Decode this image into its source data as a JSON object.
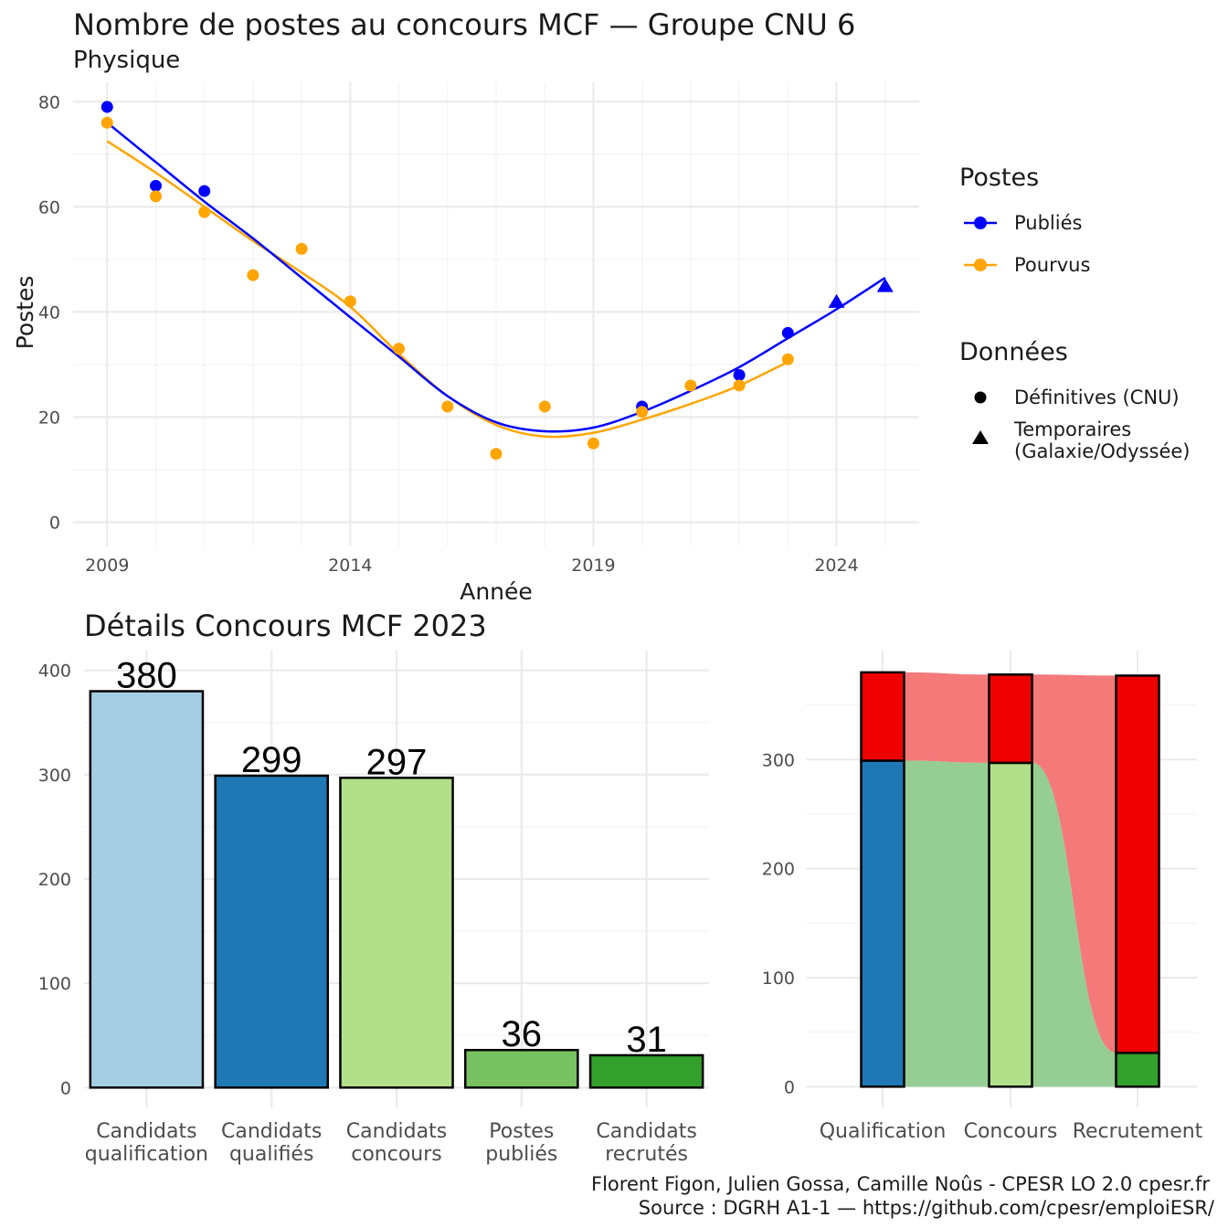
{
  "colors": {
    "publies": "#0000ff",
    "pourvus": "#ffa500",
    "qualification": "#a6cee3",
    "qualifies": "#1f78b4",
    "concours": "#b2df8a",
    "postes_publies": "#77c160",
    "recrutes": "#33a02c",
    "flow_red": "#f47a7a",
    "flow_green": "#96cd92",
    "stack_red": "#ee0000"
  },
  "legend": {
    "postes_title": "Postes",
    "publies": "Publiés",
    "pourvus": "Pourvus",
    "donnees_title": "Données",
    "definitives": "Définitives (CNU)",
    "temporaires_line1": "Temporaires",
    "temporaires_line2": "(Galaxie/Odyssée)"
  },
  "caption": {
    "line1": "Florent Figon, Julien Gossa, Camille Noûs - CPESR LO 2.0 cpesr.fr",
    "line2": "Source : DGRH A1-1 — https://github.com/cpesr/emploiESR/"
  },
  "chart_data": [
    {
      "type": "line",
      "title": "Nombre de postes au concours MCF —  Groupe CNU 6",
      "subtitle": "Physique",
      "xlabel": "Année",
      "ylabel": "Postes",
      "xlim": [
        2008.3,
        2025.7
      ],
      "ylim": [
        -4.6,
        83.7
      ],
      "xticks": [
        2009,
        2014,
        2019,
        2024
      ],
      "yticks": [
        0,
        20,
        40,
        60,
        80
      ],
      "series": [
        {
          "name": "Publiés",
          "points": [
            {
              "x": 2009,
              "y": 79,
              "shape": "Définitives (CNU)"
            },
            {
              "x": 2010,
              "y": 64,
              "shape": "Définitives (CNU)"
            },
            {
              "x": 2011,
              "y": 63,
              "shape": "Définitives (CNU)"
            },
            {
              "x": 2020,
              "y": 22,
              "shape": "Définitives (CNU)"
            },
            {
              "x": 2022,
              "y": 28,
              "shape": "Définitives (CNU)"
            },
            {
              "x": 2023,
              "y": 36,
              "shape": "Définitives (CNU)"
            },
            {
              "x": 2024,
              "y": 42,
              "shape": "Temporaires (Galaxie/Odyssée)"
            },
            {
              "x": 2025,
              "y": 45,
              "shape": "Temporaires (Galaxie/Odyssée)"
            }
          ],
          "trend": [
            {
              "x": 2009,
              "y": 76
            },
            {
              "x": 2010,
              "y": 68.5
            },
            {
              "x": 2011,
              "y": 61
            },
            {
              "x": 2012,
              "y": 54
            },
            {
              "x": 2013,
              "y": 46.5
            },
            {
              "x": 2014,
              "y": 39
            },
            {
              "x": 2015,
              "y": 31.5
            },
            {
              "x": 2016,
              "y": 24
            },
            {
              "x": 2017,
              "y": 19
            },
            {
              "x": 2018,
              "y": 17.3
            },
            {
              "x": 2019,
              "y": 18
            },
            {
              "x": 2020,
              "y": 21
            },
            {
              "x": 2021,
              "y": 25
            },
            {
              "x": 2022,
              "y": 29.5
            },
            {
              "x": 2023,
              "y": 35
            },
            {
              "x": 2024,
              "y": 40.5
            },
            {
              "x": 2025,
              "y": 46.5
            }
          ]
        },
        {
          "name": "Pourvus",
          "points": [
            {
              "x": 2009,
              "y": 76
            },
            {
              "x": 2010,
              "y": 62
            },
            {
              "x": 2011,
              "y": 59
            },
            {
              "x": 2012,
              "y": 47
            },
            {
              "x": 2013,
              "y": 52
            },
            {
              "x": 2014,
              "y": 42
            },
            {
              "x": 2015,
              "y": 33
            },
            {
              "x": 2016,
              "y": 22
            },
            {
              "x": 2017,
              "y": 13
            },
            {
              "x": 2018,
              "y": 22
            },
            {
              "x": 2019,
              "y": 15
            },
            {
              "x": 2020,
              "y": 21
            },
            {
              "x": 2021,
              "y": 26
            },
            {
              "x": 2022,
              "y": 26
            },
            {
              "x": 2023,
              "y": 31
            }
          ],
          "trend": [
            {
              "x": 2009,
              "y": 72.5
            },
            {
              "x": 2010,
              "y": 66.5
            },
            {
              "x": 2011,
              "y": 60
            },
            {
              "x": 2012,
              "y": 53.5
            },
            {
              "x": 2013,
              "y": 47.5
            },
            {
              "x": 2014,
              "y": 41
            },
            {
              "x": 2015,
              "y": 32
            },
            {
              "x": 2016,
              "y": 24
            },
            {
              "x": 2017,
              "y": 18.5
            },
            {
              "x": 2018,
              "y": 16.3
            },
            {
              "x": 2019,
              "y": 17
            },
            {
              "x": 2020,
              "y": 19.5
            },
            {
              "x": 2021,
              "y": 22.5
            },
            {
              "x": 2022,
              "y": 26
            },
            {
              "x": 2023,
              "y": 30.5
            }
          ]
        }
      ]
    },
    {
      "type": "bar",
      "title": "Détails Concours MCF 2023",
      "categories": [
        "Candidats\nqualification",
        "Candidats\nqualifiés",
        "Candidats\nconcours",
        "Postes\npubliés",
        "Candidats\nrecrutés"
      ],
      "values": [
        380,
        299,
        297,
        36,
        31
      ],
      "ylim": [
        -19,
        419
      ],
      "yticks": [
        0,
        100,
        200,
        300,
        400
      ]
    },
    {
      "type": "bar",
      "stacked": true,
      "categories": [
        "Qualification",
        "Concours",
        "Recrutement"
      ],
      "series": [
        {
          "values": [
            299,
            297,
            31
          ]
        },
        {
          "values": [
            81,
            81,
            346
          ]
        }
      ],
      "totals": [
        380,
        378,
        377
      ],
      "ylim": [
        -19,
        400
      ],
      "yticks": [
        0,
        100,
        200,
        300
      ]
    }
  ]
}
